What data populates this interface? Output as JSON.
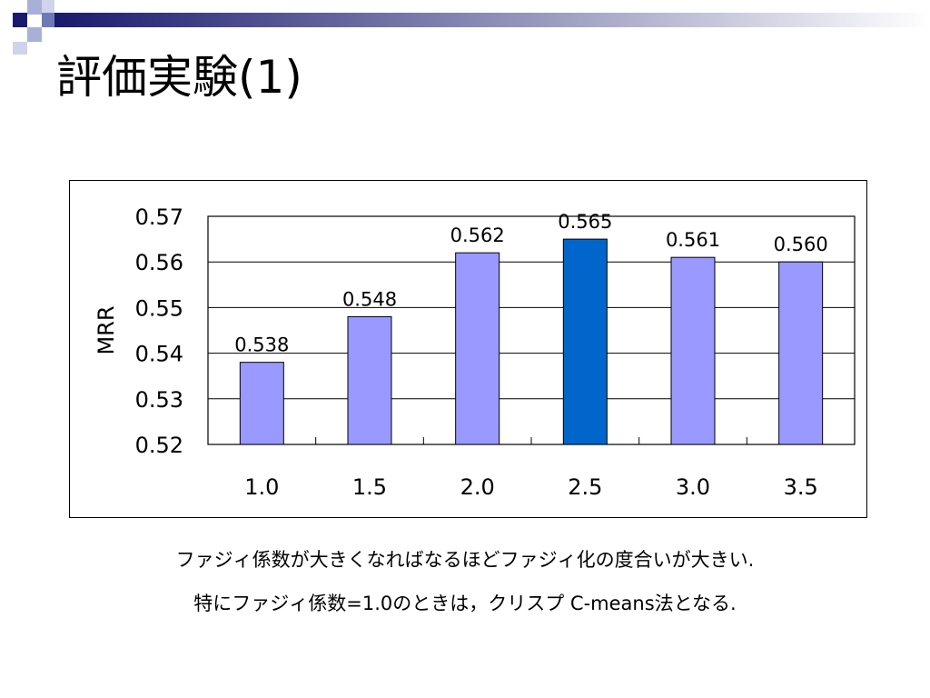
{
  "slide": {
    "title": "評価実験(1)",
    "captions": [
      "ファジィ係数が大きくなればなるほどファジィ化の度合いが大きい.",
      "特にファジィ係数=1.0のときは，クリスプ C-means法となる."
    ]
  },
  "colors": {
    "bar": "#9999ff",
    "bar_highlight": "#0066cc",
    "header_gradient_start": "#1a1a6e",
    "header_gradient_end": "#ffffff"
  },
  "chart_data": {
    "type": "bar",
    "categories": [
      "1.0",
      "1.5",
      "2.0",
      "2.5",
      "3.0",
      "3.5"
    ],
    "values": [
      0.538,
      0.548,
      0.562,
      0.565,
      0.561,
      0.56
    ],
    "data_labels": [
      "0.538",
      "0.548",
      "0.562",
      "0.565",
      "0.561",
      "0.560"
    ],
    "highlight_index": 3,
    "ylabel": "MRR",
    "xlabel": "",
    "title": "",
    "ylim": [
      0.52,
      0.57
    ],
    "yticks": [
      "0.52",
      "0.53",
      "0.54",
      "0.55",
      "0.56",
      "0.57"
    ],
    "ytick_values": [
      0.52,
      0.53,
      0.54,
      0.55,
      0.56,
      0.57
    ],
    "grid": true,
    "legend": "none"
  }
}
